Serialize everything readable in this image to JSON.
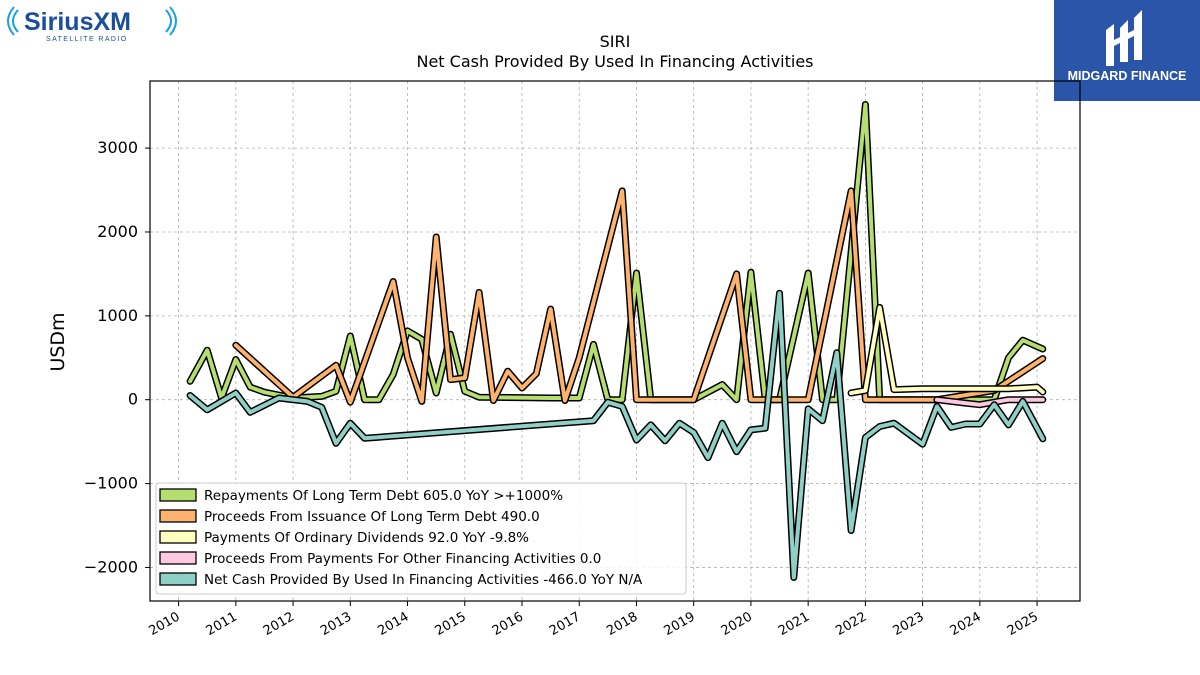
{
  "brand_left": {
    "name": "SiriusXM",
    "tagline": "SATELLITE RADIO"
  },
  "brand_right": {
    "name": "MIDGARD FINANCE"
  },
  "colors": {
    "repayments": "#b5dd6f",
    "proceeds_debt": "#fdb36e",
    "dividends": "#ffffbf",
    "other": "#fcc9e0",
    "net_cash": "#8ed0c6",
    "grid": "#b0b0b0",
    "logo_blue": "#2a55a8",
    "sirius_blue": "#1a4e9c"
  },
  "chart_data": {
    "type": "line",
    "title": "SIRI",
    "subtitle": "Net Cash Provided By Used In Financing Activities",
    "ylabel": "USDm",
    "xlabel": "",
    "xlim": [
      2009.5,
      2025.75
    ],
    "ylim": [
      -2400,
      3800
    ],
    "x_ticks": [
      "2010",
      "2011",
      "2012",
      "2013",
      "2014",
      "2015",
      "2016",
      "2017",
      "2018",
      "2019",
      "2020",
      "2021",
      "2022",
      "2023",
      "2024",
      "2025"
    ],
    "y_ticks": [
      -2000,
      -1000,
      0,
      1000,
      2000,
      3000
    ],
    "y_tick_labels": [
      "−2000",
      "−1000",
      "0",
      "1000",
      "2000",
      "3000"
    ],
    "grid": true,
    "legend_position": "lower-left",
    "series": [
      {
        "name": "Repayments Of Long Term Debt  605.0 YoY >+1000%",
        "color_key": "repayments",
        "points": [
          [
            2010.2,
            220
          ],
          [
            2010.5,
            590
          ],
          [
            2010.75,
            20
          ],
          [
            2011.0,
            480
          ],
          [
            2011.25,
            150
          ],
          [
            2011.5,
            90
          ],
          [
            2012.0,
            20
          ],
          [
            2012.5,
            40
          ],
          [
            2012.75,
            100
          ],
          [
            2013.0,
            760
          ],
          [
            2013.25,
            0
          ],
          [
            2013.5,
            0
          ],
          [
            2013.75,
            300
          ],
          [
            2014.0,
            820
          ],
          [
            2014.25,
            720
          ],
          [
            2014.5,
            80
          ],
          [
            2014.75,
            780
          ],
          [
            2015.0,
            100
          ],
          [
            2015.25,
            30
          ],
          [
            2016.5,
            20
          ],
          [
            2017.0,
            20
          ],
          [
            2017.25,
            660
          ],
          [
            2017.5,
            0
          ],
          [
            2017.75,
            0
          ],
          [
            2018.0,
            1510
          ],
          [
            2018.25,
            0
          ],
          [
            2018.5,
            0
          ],
          [
            2019.0,
            0
          ],
          [
            2019.5,
            180
          ],
          [
            2019.75,
            0
          ],
          [
            2020.0,
            1520
          ],
          [
            2020.25,
            0
          ],
          [
            2020.5,
            0
          ],
          [
            2021.0,
            1510
          ],
          [
            2021.25,
            0
          ],
          [
            2021.5,
            0
          ],
          [
            2022.0,
            3520
          ],
          [
            2022.25,
            0
          ],
          [
            2024.25,
            0
          ],
          [
            2024.5,
            500
          ],
          [
            2024.75,
            710
          ],
          [
            2025.1,
            605
          ]
        ]
      },
      {
        "name": "Proceeds From Issuance Of Long Term Debt  490.0",
        "color_key": "proceeds_debt",
        "points": [
          [
            2011.0,
            650
          ],
          [
            2012.0,
            30
          ],
          [
            2012.75,
            410
          ],
          [
            2013.0,
            -30
          ],
          [
            2013.75,
            1410
          ],
          [
            2014.0,
            500
          ],
          [
            2014.25,
            -20
          ],
          [
            2014.5,
            1940
          ],
          [
            2014.75,
            240
          ],
          [
            2015.0,
            260
          ],
          [
            2015.25,
            1280
          ],
          [
            2015.5,
            -10
          ],
          [
            2015.75,
            340
          ],
          [
            2016.0,
            140
          ],
          [
            2016.25,
            310
          ],
          [
            2016.5,
            1080
          ],
          [
            2016.75,
            -10
          ],
          [
            2017.0,
            500
          ],
          [
            2017.75,
            2490
          ],
          [
            2018.0,
            0
          ],
          [
            2018.25,
            0
          ],
          [
            2018.5,
            0
          ],
          [
            2019.0,
            0
          ],
          [
            2019.75,
            1500
          ],
          [
            2020.0,
            0
          ],
          [
            2020.25,
            0
          ],
          [
            2020.5,
            0
          ],
          [
            2021.0,
            0
          ],
          [
            2021.75,
            2490
          ],
          [
            2022.0,
            0
          ],
          [
            2022.25,
            0
          ],
          [
            2023.25,
            0
          ],
          [
            2024.25,
            110
          ],
          [
            2025.1,
            490
          ]
        ]
      },
      {
        "name": "Payments Of Ordinary Dividends  92.0 YoY -9.8%",
        "color_key": "dividends",
        "points": [
          [
            2021.75,
            80
          ],
          [
            2022.0,
            110
          ],
          [
            2022.25,
            1100
          ],
          [
            2022.5,
            120
          ],
          [
            2023.0,
            130
          ],
          [
            2024.5,
            130
          ],
          [
            2025.0,
            150
          ],
          [
            2025.1,
            92
          ]
        ]
      },
      {
        "name": "Proceeds From Payments For Other Financing Activities  0.0",
        "color_key": "other",
        "points": [
          [
            2023.25,
            0
          ],
          [
            2023.75,
            -40
          ],
          [
            2024.0,
            -60
          ],
          [
            2024.5,
            0
          ],
          [
            2025.1,
            0
          ]
        ]
      },
      {
        "name": "Net Cash Provided By Used In Financing Activities  -466.0 YoY N/A",
        "color_key": "net_cash",
        "points": [
          [
            2010.2,
            50
          ],
          [
            2010.5,
            -120
          ],
          [
            2011.0,
            80
          ],
          [
            2011.25,
            -150
          ],
          [
            2011.75,
            20
          ],
          [
            2012.25,
            -20
          ],
          [
            2012.5,
            -90
          ],
          [
            2012.75,
            -520
          ],
          [
            2013.0,
            -280
          ],
          [
            2013.25,
            -460
          ],
          [
            2017.25,
            -250
          ],
          [
            2017.5,
            -30
          ],
          [
            2017.75,
            -80
          ],
          [
            2018.0,
            -480
          ],
          [
            2018.25,
            -300
          ],
          [
            2018.5,
            -490
          ],
          [
            2018.75,
            -280
          ],
          [
            2019.0,
            -390
          ],
          [
            2019.25,
            -690
          ],
          [
            2019.5,
            -280
          ],
          [
            2019.75,
            -620
          ],
          [
            2020.0,
            -360
          ],
          [
            2020.25,
            -340
          ],
          [
            2020.5,
            1270
          ],
          [
            2020.75,
            -2120
          ],
          [
            2021.0,
            -110
          ],
          [
            2021.25,
            -250
          ],
          [
            2021.5,
            560
          ],
          [
            2021.75,
            -1560
          ],
          [
            2022.0,
            -450
          ],
          [
            2022.25,
            -320
          ],
          [
            2022.5,
            -280
          ],
          [
            2023.0,
            -530
          ],
          [
            2023.25,
            -80
          ],
          [
            2023.5,
            -330
          ],
          [
            2023.75,
            -290
          ],
          [
            2024.0,
            -290
          ],
          [
            2024.25,
            -60
          ],
          [
            2024.5,
            -300
          ],
          [
            2024.75,
            -20
          ],
          [
            2025.1,
            -466
          ]
        ]
      }
    ]
  }
}
